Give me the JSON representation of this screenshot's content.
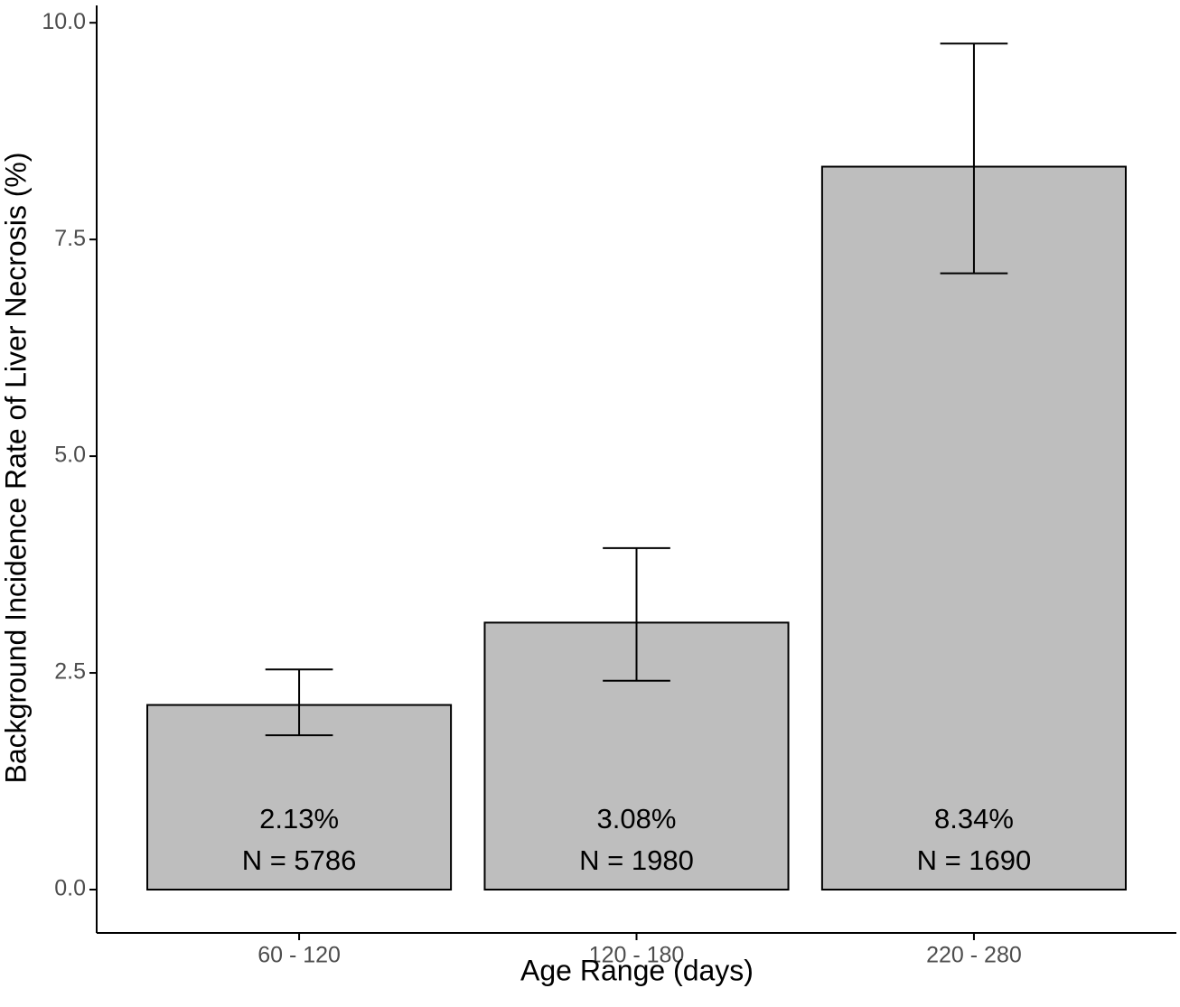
{
  "chart_data": {
    "type": "bar",
    "title": "",
    "xlabel": "Age Range (days)",
    "ylabel": "Background Incidence Rate of Liver Necrosis (%)",
    "categories": [
      "60 - 120",
      "120 - 180",
      "220 - 280"
    ],
    "values": [
      2.13,
      3.08,
      8.34
    ],
    "error_bars": [
      {
        "lower": 1.78,
        "upper": 2.54
      },
      {
        "lower": 2.41,
        "upper": 3.94
      },
      {
        "lower": 7.11,
        "upper": 9.76
      }
    ],
    "bar_labels": [
      {
        "percent": "2.13%",
        "n": "N = 5786"
      },
      {
        "percent": "3.08%",
        "n": "N = 1980"
      },
      {
        "percent": "8.34%",
        "n": "N = 1690"
      }
    ],
    "yticks": [
      "0.0",
      "2.5",
      "5.0",
      "7.5",
      "10.0"
    ],
    "ytick_values": [
      0,
      2.5,
      5,
      7.5,
      10
    ],
    "ylim": [
      -0.5,
      10.2
    ],
    "grid": false,
    "colors": {
      "bar_fill": "#bebebe",
      "bar_stroke": "#000000",
      "axis": "#000000",
      "tick_text": "#4d4d4d"
    }
  }
}
